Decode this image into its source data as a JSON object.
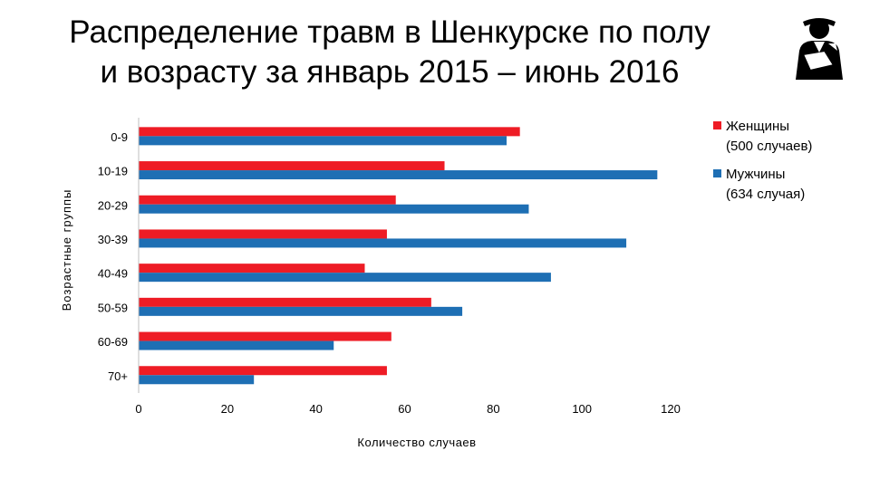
{
  "title": {
    "line1": "Распределение травм в Шенкурске по полу",
    "line2": "и возрасту за январь 2015 – июнь 2016"
  },
  "icon": "injured-person-arm-sling-icon",
  "colors": {
    "women": "#EE1C25",
    "men": "#1E6FB4"
  },
  "chart_data": {
    "type": "bar",
    "orientation": "horizontal",
    "categories": [
      "0-9",
      "10-19",
      "20-29",
      "30-39",
      "40-49",
      "50-59",
      "60-69",
      "70+"
    ],
    "series": [
      {
        "name_line1": "Женщины",
        "name_line2": "(500 случаев)",
        "color": "#EE1C25",
        "values": [
          86,
          69,
          58,
          56,
          51,
          66,
          57,
          56
        ]
      },
      {
        "name_line1": "Мужчины",
        "name_line2": "(634 случая)",
        "color": "#1E6FB4",
        "values": [
          83,
          117,
          88,
          110,
          93,
          73,
          44,
          26
        ]
      }
    ],
    "xlabel": "Количество случаев",
    "ylabel": "Возрастные группы",
    "xlim": [
      0,
      120
    ],
    "xticks": [
      "0",
      "20",
      "40",
      "60",
      "80",
      "100",
      "120"
    ],
    "grid": false,
    "legend_position": "top-right"
  }
}
